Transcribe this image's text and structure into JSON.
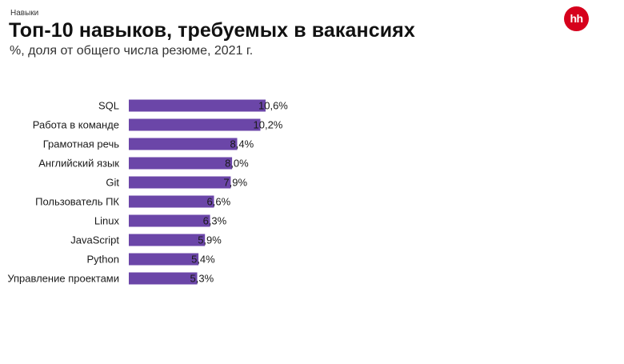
{
  "header": {
    "kicker": "Навыки",
    "title": "Топ-10 навыков, требуемых в вакансиях",
    "subtitle": "%, доля от общего числа резюме, 2021 г.",
    "logo_text": "hh"
  },
  "colors": {
    "bar": "#6b46a8",
    "logo": "#d6001c"
  },
  "chart_data": {
    "type": "bar",
    "orientation": "horizontal",
    "categories": [
      "SQL",
      "Работа в команде",
      "Грамотная речь",
      "Английский язык",
      "Git",
      "Пользователь ПК",
      "Linux",
      "JavaScript",
      "Python",
      "Управление проектами"
    ],
    "values": [
      10.6,
      10.2,
      8.4,
      8.0,
      7.9,
      6.6,
      6.3,
      5.9,
      5.4,
      5.3
    ],
    "value_labels": [
      "10,6%",
      "10,2%",
      "8,4%",
      "8,0%",
      "7,9%",
      "6,6%",
      "6,3%",
      "5,9%",
      "5,4%",
      "5,3%"
    ],
    "title": "Топ-10 навыков, требуемых в вакансиях",
    "subtitle": "%, доля от общего числа резюме, 2021 г.",
    "xlabel": "",
    "ylabel": "",
    "xlim": [
      0,
      10.6
    ],
    "grid": false,
    "legend": "none"
  }
}
